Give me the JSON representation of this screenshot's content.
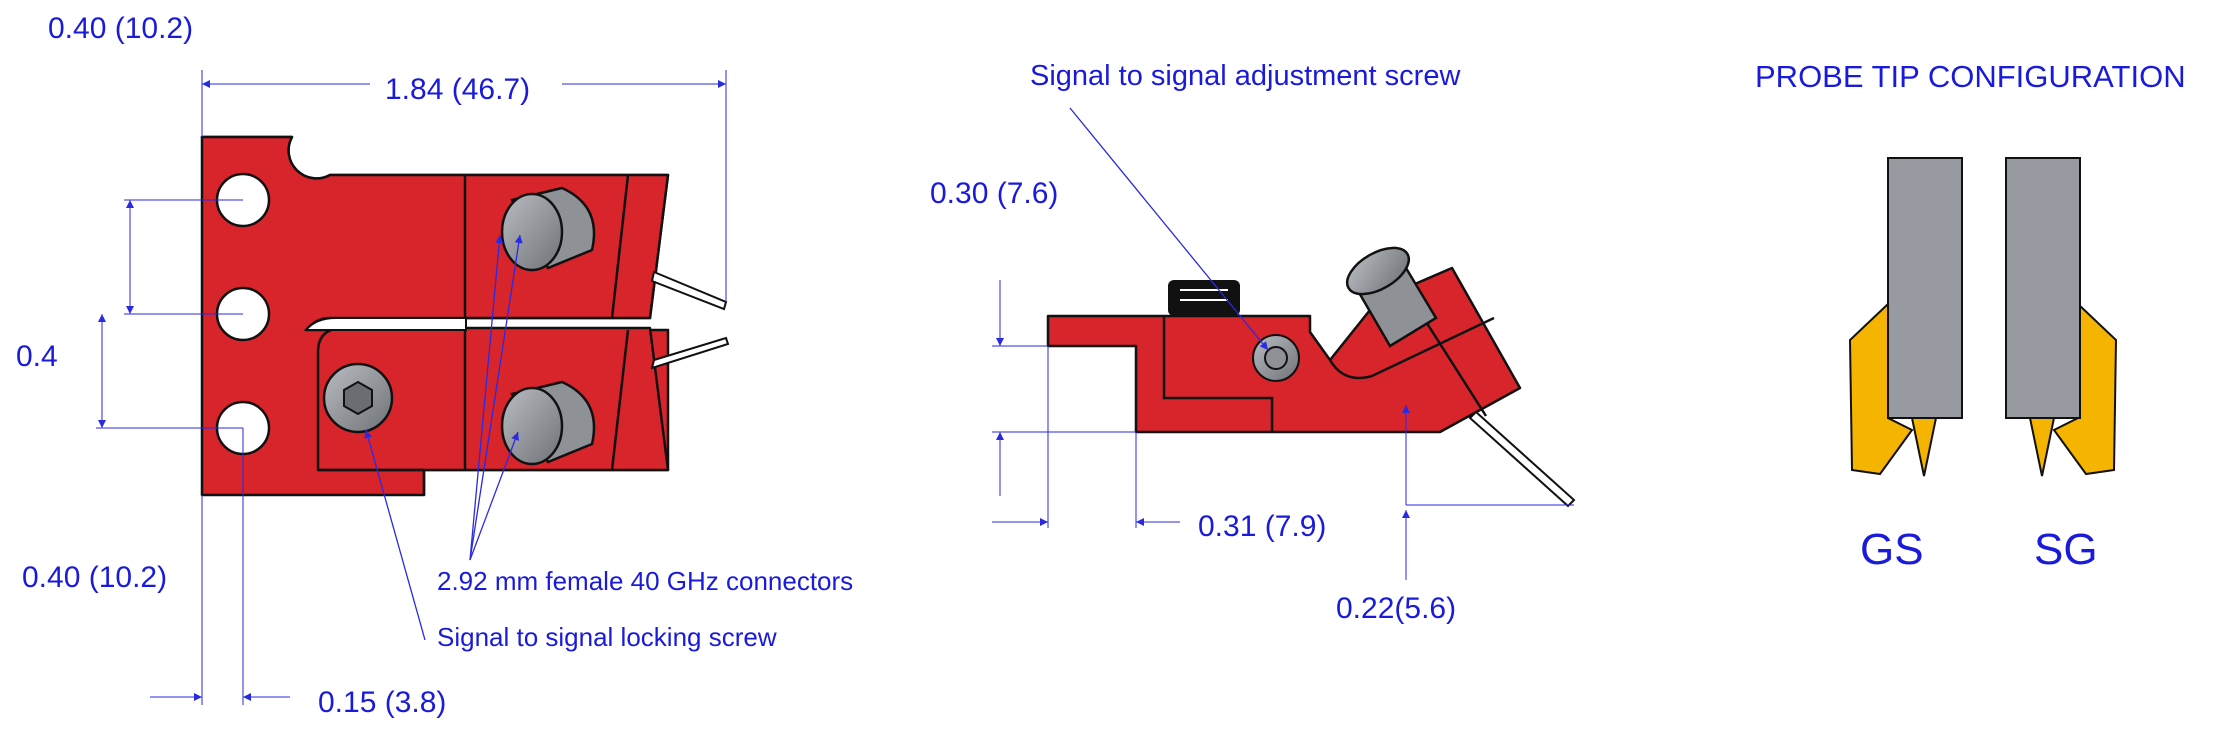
{
  "colors": {
    "body_red": "#d8242b",
    "outline": "#111111",
    "annotation_blue": "#1a1adb",
    "connector_gray": "#8e9196",
    "probe_gray": "#979aa0",
    "probe_gold": "#f4b400"
  },
  "top_view": {
    "dim_left_top": "0.40 (10.2)",
    "dim_width": "1.84 (46.7)",
    "dim_left_mid": "0.4",
    "dim_left_bottom": "0.40 (10.2)",
    "dim_bottom": "0.15 (3.8)",
    "connectors_label": "2.92 mm female 40 GHz connectors",
    "locking_screw_label": "Signal   to signal locking screw"
  },
  "side_view": {
    "adjustment_screw_label": "Signal  to signal adjustment screw",
    "dim_height": "0.30 (7.6)",
    "dim_length": "0.31 (7.9)",
    "dim_tip": "0.22(5.6)"
  },
  "probe_tips": {
    "title": "PROBE TIP CONFIGURATION",
    "gs_label": "GS",
    "sg_label": "SG"
  }
}
